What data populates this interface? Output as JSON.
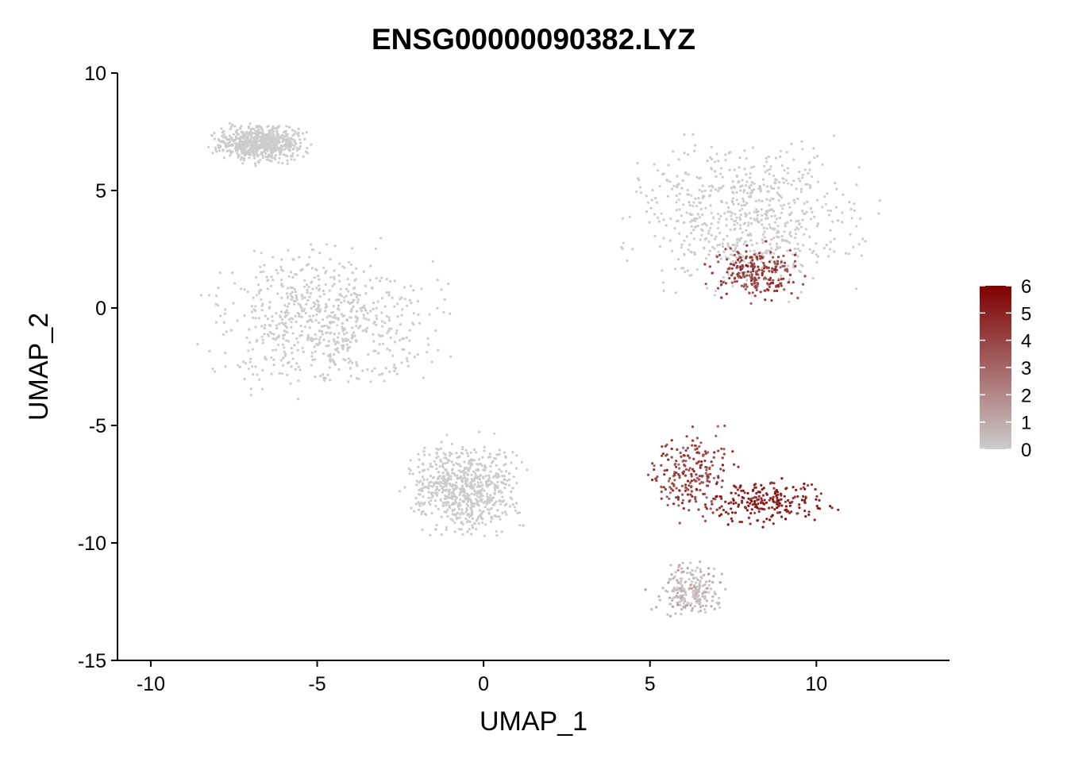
{
  "chart_data": {
    "type": "scatter",
    "title": "ENSG00000090382.LYZ",
    "xlabel": "UMAP_1",
    "ylabel": "UMAP_2",
    "xlim": [
      -11,
      14
    ],
    "ylim": [
      -15,
      10
    ],
    "x_ticks": [
      -10,
      -5,
      0,
      5,
      10
    ],
    "y_ticks": [
      -15,
      -10,
      -5,
      0,
      5,
      10
    ],
    "x_tick_labels": [
      "-10",
      "-5",
      "0",
      "5",
      "10"
    ],
    "y_tick_labels": [
      "-15",
      "-10",
      "-5",
      "0",
      "5",
      "10"
    ],
    "grid": false,
    "legend": {
      "placement": "right",
      "type": "colorbar",
      "min": 0,
      "max": 6,
      "ticks": [
        0,
        1,
        2,
        3,
        4,
        5,
        6
      ],
      "tick_labels": [
        "0",
        "1",
        "2",
        "3",
        "4",
        "5",
        "6"
      ],
      "low_color": "#cccccc",
      "high_color": "#7f0000"
    },
    "colors": {
      "background_points": "#cccccc",
      "expression_high": "#7f0000"
    },
    "clusters": [
      {
        "cluster": "upper-left",
        "x_range": [
          -8.5,
          -5
        ],
        "y_range": [
          6,
          8
        ],
        "expression": 0
      },
      {
        "cluster": "left main",
        "x_range": [
          -9.3,
          -0.3
        ],
        "y_range": [
          -4.5,
          3.5
        ],
        "expression": 0
      },
      {
        "cluster": "lower-middle",
        "x_range": [
          -2.8,
          1.7
        ],
        "y_range": [
          -10.3,
          -5
        ],
        "expression": 0
      },
      {
        "cluster": "upper-right",
        "x_range": [
          3.5,
          12.5
        ],
        "y_range": [
          -0.5,
          8.3
        ],
        "expression": 0
      },
      {
        "cluster": "upper-right high-expression subset",
        "x_range": [
          6.5,
          10
        ],
        "y_range": [
          0,
          3
        ],
        "expression": 4
      },
      {
        "cluster": "center-right star",
        "x_range": [
          4.5,
          8
        ],
        "y_range": [
          -9.5,
          -4.5
        ],
        "expression": 4
      },
      {
        "cluster": "lower-right streak",
        "x_range": [
          6,
          11
        ],
        "y_range": [
          -9.5,
          -7
        ],
        "expression": 5
      },
      {
        "cluster": "bottom",
        "x_range": [
          4.8,
          7.5
        ],
        "y_range": [
          -13.5,
          -10.5
        ],
        "expression": 0.5
      }
    ]
  }
}
